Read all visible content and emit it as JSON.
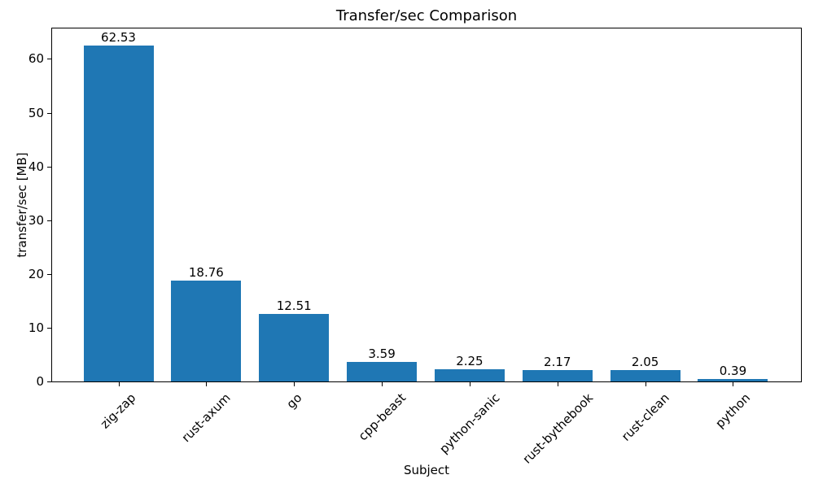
{
  "chart_data": {
    "type": "bar",
    "title": "Transfer/sec Comparison",
    "xlabel": "Subject",
    "ylabel": "transfer/sec [MB]",
    "categories": [
      "zig-zap",
      "rust-axum",
      "go",
      "cpp-beast",
      "python-sanic",
      "rust-bythebook",
      "rust-clean",
      "python"
    ],
    "values": [
      62.53,
      18.76,
      12.51,
      3.59,
      2.25,
      2.17,
      2.05,
      0.39
    ],
    "bar_labels": [
      "62.53",
      "18.76",
      "12.51",
      "3.59",
      "2.25",
      "2.17",
      "2.05",
      "0.39"
    ],
    "yticks": [
      0,
      10,
      20,
      30,
      40,
      50,
      60
    ],
    "ylim": [
      0,
      65.66
    ],
    "grid": false,
    "legend": "none",
    "bar_color": "#1f77b4",
    "axis_color": "#000000",
    "text_color": "#000000",
    "background_color": "#ffffff"
  }
}
